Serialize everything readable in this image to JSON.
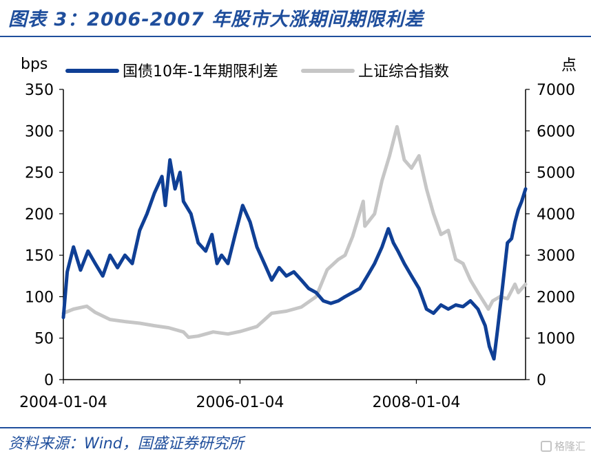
{
  "page": {
    "title": "图表 3：2006-2007 年股市大涨期间期限利差",
    "source": "资料来源：Wind，国盛证券研究所",
    "watermark": "格隆汇"
  },
  "colors": {
    "title": "#1f4e9c",
    "spread_series": "#0f3f95",
    "index_series": "#c6c6c6",
    "axis": "#000000"
  },
  "chart_data": {
    "type": "line",
    "title": "",
    "y_left_unit": "bps",
    "y_right_unit": "点",
    "y_left_lim": [
      0,
      350
    ],
    "y_left_ticks": [
      0,
      50,
      100,
      150,
      200,
      250,
      300,
      350
    ],
    "y_right_lim": [
      0,
      7000
    ],
    "y_right_ticks": [
      0,
      1000,
      2000,
      3000,
      4000,
      5000,
      6000,
      7000
    ],
    "x_ticks": [
      "2004-01-04",
      "2006-01-04",
      "2008-01-04"
    ],
    "x_range": [
      "2004-01-04",
      "2009-03-31"
    ],
    "legend_position": "top",
    "grid": false,
    "series": [
      {
        "name": "国债10年-1年期限利差",
        "axis": "left",
        "points": [
          [
            "2004-01-04",
            75
          ],
          [
            "2004-01-20",
            130
          ],
          [
            "2004-02-15",
            160
          ],
          [
            "2004-03-15",
            132
          ],
          [
            "2004-04-15",
            155
          ],
          [
            "2004-05-15",
            140
          ],
          [
            "2004-06-15",
            125
          ],
          [
            "2004-07-15",
            150
          ],
          [
            "2004-08-15",
            135
          ],
          [
            "2004-09-15",
            150
          ],
          [
            "2004-10-15",
            140
          ],
          [
            "2004-11-15",
            180
          ],
          [
            "2004-12-15",
            200
          ],
          [
            "2005-01-15",
            225
          ],
          [
            "2005-02-15",
            245
          ],
          [
            "2005-03-01",
            210
          ],
          [
            "2005-03-20",
            265
          ],
          [
            "2005-04-10",
            230
          ],
          [
            "2005-05-01",
            250
          ],
          [
            "2005-05-15",
            215
          ],
          [
            "2005-06-15",
            200
          ],
          [
            "2005-07-15",
            165
          ],
          [
            "2005-08-15",
            155
          ],
          [
            "2005-09-10",
            175
          ],
          [
            "2005-10-01",
            140
          ],
          [
            "2005-10-20",
            150
          ],
          [
            "2005-11-15",
            140
          ],
          [
            "2005-12-15",
            175
          ],
          [
            "2006-01-15",
            210
          ],
          [
            "2006-02-15",
            190
          ],
          [
            "2006-03-15",
            160
          ],
          [
            "2006-04-15",
            140
          ],
          [
            "2006-05-15",
            120
          ],
          [
            "2006-06-15",
            135
          ],
          [
            "2006-07-15",
            125
          ],
          [
            "2006-08-15",
            130
          ],
          [
            "2006-09-15",
            120
          ],
          [
            "2006-10-15",
            110
          ],
          [
            "2006-11-15",
            105
          ],
          [
            "2006-12-15",
            95
          ],
          [
            "2007-01-15",
            92
          ],
          [
            "2007-02-15",
            95
          ],
          [
            "2007-03-15",
            100
          ],
          [
            "2007-04-15",
            105
          ],
          [
            "2007-05-15",
            110
          ],
          [
            "2007-06-15",
            125
          ],
          [
            "2007-07-15",
            140
          ],
          [
            "2007-08-15",
            160
          ],
          [
            "2007-09-10",
            182
          ],
          [
            "2007-10-01",
            165
          ],
          [
            "2007-10-20",
            155
          ],
          [
            "2007-11-15",
            140
          ],
          [
            "2007-12-15",
            125
          ],
          [
            "2008-01-15",
            110
          ],
          [
            "2008-02-15",
            85
          ],
          [
            "2008-03-15",
            80
          ],
          [
            "2008-04-15",
            90
          ],
          [
            "2008-05-15",
            85
          ],
          [
            "2008-06-15",
            90
          ],
          [
            "2008-07-15",
            88
          ],
          [
            "2008-08-15",
            95
          ],
          [
            "2008-09-15",
            85
          ],
          [
            "2008-10-15",
            65
          ],
          [
            "2008-11-01",
            40
          ],
          [
            "2008-11-20",
            25
          ],
          [
            "2008-12-05",
            60
          ],
          [
            "2008-12-25",
            110
          ],
          [
            "2009-01-15",
            165
          ],
          [
            "2009-02-01",
            170
          ],
          [
            "2009-02-15",
            190
          ],
          [
            "2009-03-01",
            205
          ],
          [
            "2009-03-15",
            215
          ],
          [
            "2009-03-31",
            230
          ]
        ]
      },
      {
        "name": "上证综合指数",
        "axis": "right",
        "points": [
          [
            "2004-01-04",
            1600
          ],
          [
            "2004-02-15",
            1700
          ],
          [
            "2004-04-10",
            1770
          ],
          [
            "2004-05-15",
            1620
          ],
          [
            "2004-07-15",
            1450
          ],
          [
            "2004-09-15",
            1400
          ],
          [
            "2004-11-15",
            1360
          ],
          [
            "2005-01-15",
            1300
          ],
          [
            "2005-03-15",
            1250
          ],
          [
            "2005-05-15",
            1150
          ],
          [
            "2005-06-05",
            1020
          ],
          [
            "2005-07-15",
            1050
          ],
          [
            "2005-09-15",
            1150
          ],
          [
            "2005-11-15",
            1100
          ],
          [
            "2006-01-04",
            1160
          ],
          [
            "2006-03-15",
            1280
          ],
          [
            "2006-05-15",
            1600
          ],
          [
            "2006-07-15",
            1650
          ],
          [
            "2006-09-15",
            1750
          ],
          [
            "2006-11-15",
            2000
          ],
          [
            "2006-12-31",
            2650
          ],
          [
            "2007-02-15",
            2900
          ],
          [
            "2007-03-15",
            3000
          ],
          [
            "2007-04-15",
            3450
          ],
          [
            "2007-05-29",
            4300
          ],
          [
            "2007-06-05",
            3700
          ],
          [
            "2007-07-15",
            4000
          ],
          [
            "2007-08-15",
            4800
          ],
          [
            "2007-09-15",
            5400
          ],
          [
            "2007-10-16",
            6100
          ],
          [
            "2007-11-15",
            5300
          ],
          [
            "2007-12-15",
            5100
          ],
          [
            "2008-01-15",
            5400
          ],
          [
            "2008-02-15",
            4600
          ],
          [
            "2008-03-15",
            4000
          ],
          [
            "2008-04-15",
            3500
          ],
          [
            "2008-05-15",
            3600
          ],
          [
            "2008-06-15",
            2900
          ],
          [
            "2008-07-15",
            2800
          ],
          [
            "2008-08-15",
            2400
          ],
          [
            "2008-09-15",
            2100
          ],
          [
            "2008-10-28",
            1700
          ],
          [
            "2008-11-15",
            1900
          ],
          [
            "2008-12-15",
            2000
          ],
          [
            "2009-01-15",
            1950
          ],
          [
            "2009-02-15",
            2300
          ],
          [
            "2009-03-01",
            2100
          ],
          [
            "2009-03-31",
            2300
          ]
        ]
      }
    ]
  }
}
